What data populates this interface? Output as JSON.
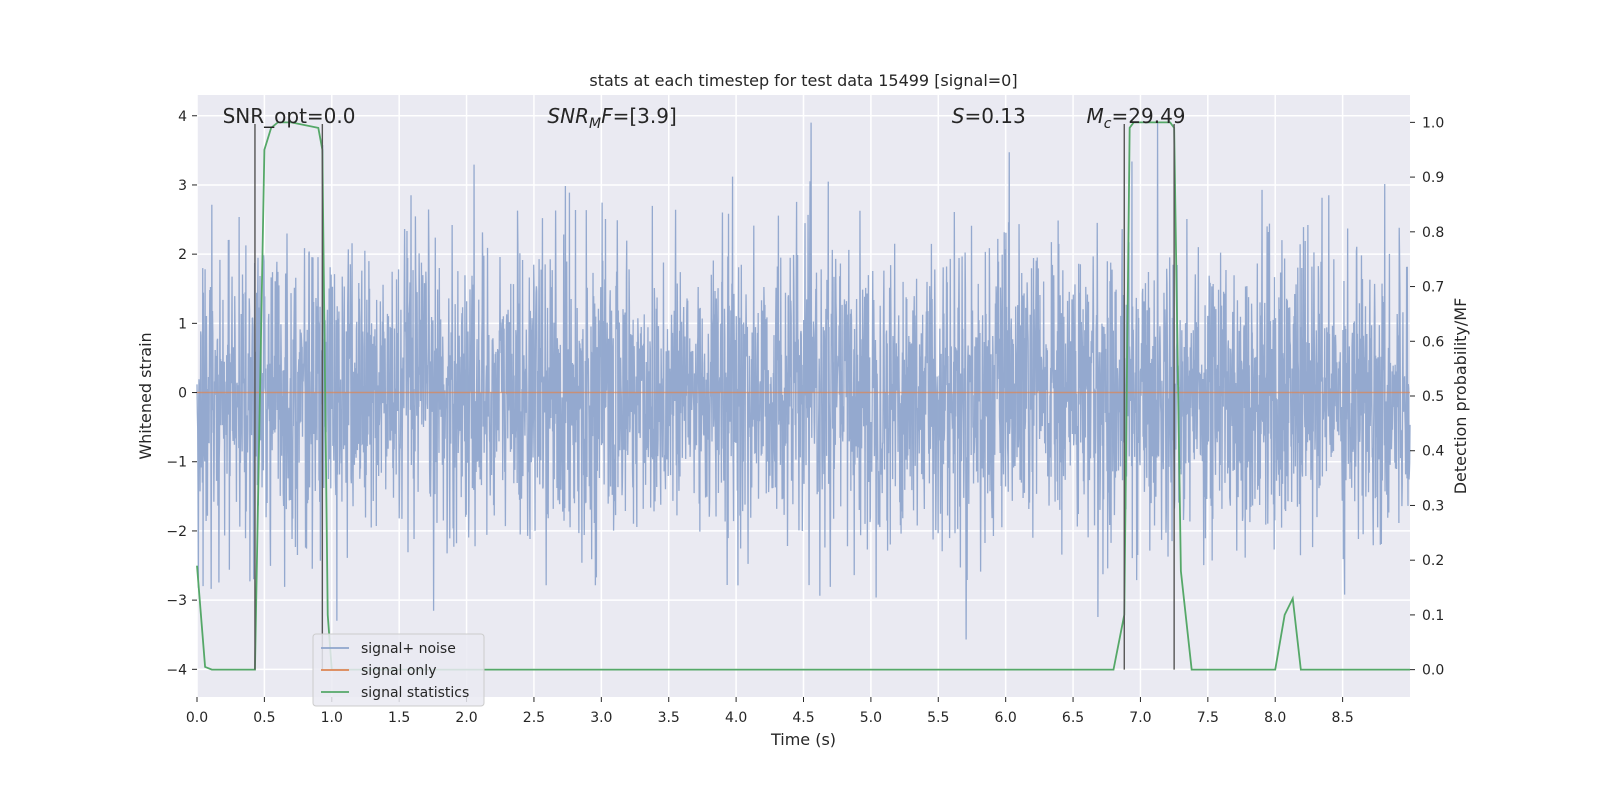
{
  "chart_data": {
    "type": "line",
    "title": "stats at each timestep for test data 15499 [signal=0]",
    "xlabel": "Time (s)",
    "ylabel": "Whitened strain",
    "y2label": "Detection probability/MF",
    "xlim": [
      0,
      9
    ],
    "ylim": [
      -4.4,
      4.3
    ],
    "y2lim": [
      -0.05,
      1.05
    ],
    "xticks": [
      0.0,
      0.5,
      1.0,
      1.5,
      2.0,
      2.5,
      3.0,
      3.5,
      4.0,
      4.5,
      5.0,
      5.5,
      6.0,
      6.5,
      7.0,
      7.5,
      8.0,
      8.5
    ],
    "yticks": [
      -4,
      -3,
      -2,
      -1,
      0,
      1,
      2,
      3,
      4
    ],
    "y2ticks": [
      0.0,
      0.1,
      0.2,
      0.3,
      0.4,
      0.5,
      0.6,
      0.7,
      0.8,
      0.9,
      1.0
    ],
    "xtick_labels": [
      "0.0",
      "0.5",
      "1.0",
      "1.5",
      "2.0",
      "2.5",
      "3.0",
      "3.5",
      "4.0",
      "4.5",
      "5.0",
      "5.5",
      "6.0",
      "6.5",
      "7.0",
      "7.5",
      "8.0",
      "8.5"
    ],
    "ytick_labels": [
      "−4",
      "−3",
      "−2",
      "−1",
      "0",
      "1",
      "2",
      "3",
      "4"
    ],
    "y2tick_labels": [
      "0.0",
      "0.1",
      "0.2",
      "0.3",
      "0.4",
      "0.5",
      "0.6",
      "0.7",
      "0.8",
      "0.9",
      "1.0"
    ],
    "grid": true,
    "legend_position": "lower-left",
    "annotations": [
      {
        "id": "snr-opt",
        "text": "SNR_opt=0.0",
        "x": 0.19,
        "y": 4.0
      },
      {
        "id": "snr-mf",
        "base": "SNR",
        "sub": "M",
        "rest": "F=[3.9]",
        "x": 2.6,
        "y": 4.0
      },
      {
        "id": "s-stat",
        "base": "S",
        "rest": "=0.13",
        "x": 5.6,
        "y": 4.0
      },
      {
        "id": "mc",
        "base": "M",
        "sub": "c",
        "rest": "=29.49",
        "x": 6.6,
        "y": 4.0
      }
    ],
    "vertical_lines": [
      0.43,
      0.93,
      6.88,
      7.25
    ],
    "series": [
      {
        "name": "signal+ noise",
        "color": "#8fa5cc",
        "axis": "left",
        "style": "noise",
        "amplitude_range": [
          -3.9,
          3.9
        ],
        "description_values": "dense whitened strain noise spanning roughly -2.5 to 2.5 with spikes to about +/-3.9"
      },
      {
        "name": "signal only",
        "color": "#dd8452",
        "axis": "left",
        "x": [
          0,
          9
        ],
        "y": [
          0,
          0
        ]
      },
      {
        "name": "signal statistics",
        "color": "#55a868",
        "axis": "right",
        "x": [
          0.0,
          0.06,
          0.11,
          0.43,
          0.5,
          0.55,
          0.6,
          0.7,
          0.9,
          0.93,
          0.97,
          1.0,
          1.5,
          2.0,
          3.0,
          4.0,
          5.0,
          6.0,
          6.8,
          6.88,
          6.92,
          6.95,
          7.0,
          7.1,
          7.22,
          7.25,
          7.3,
          7.38,
          7.5,
          8.0,
          8.07,
          8.13,
          8.19,
          8.5,
          9.0
        ],
        "y": [
          0.19,
          0.005,
          0.0,
          0.0,
          0.95,
          0.99,
          1.0,
          1.0,
          0.99,
          0.95,
          0.1,
          0.0,
          0.0,
          0.0,
          0.0,
          0.0,
          0.0,
          0.0,
          0.0,
          0.1,
          0.99,
          1.0,
          1.0,
          1.0,
          1.0,
          0.99,
          0.18,
          0.0,
          0.0,
          0.0,
          0.1,
          0.13,
          0.0,
          0.0,
          0.0
        ]
      }
    ]
  }
}
